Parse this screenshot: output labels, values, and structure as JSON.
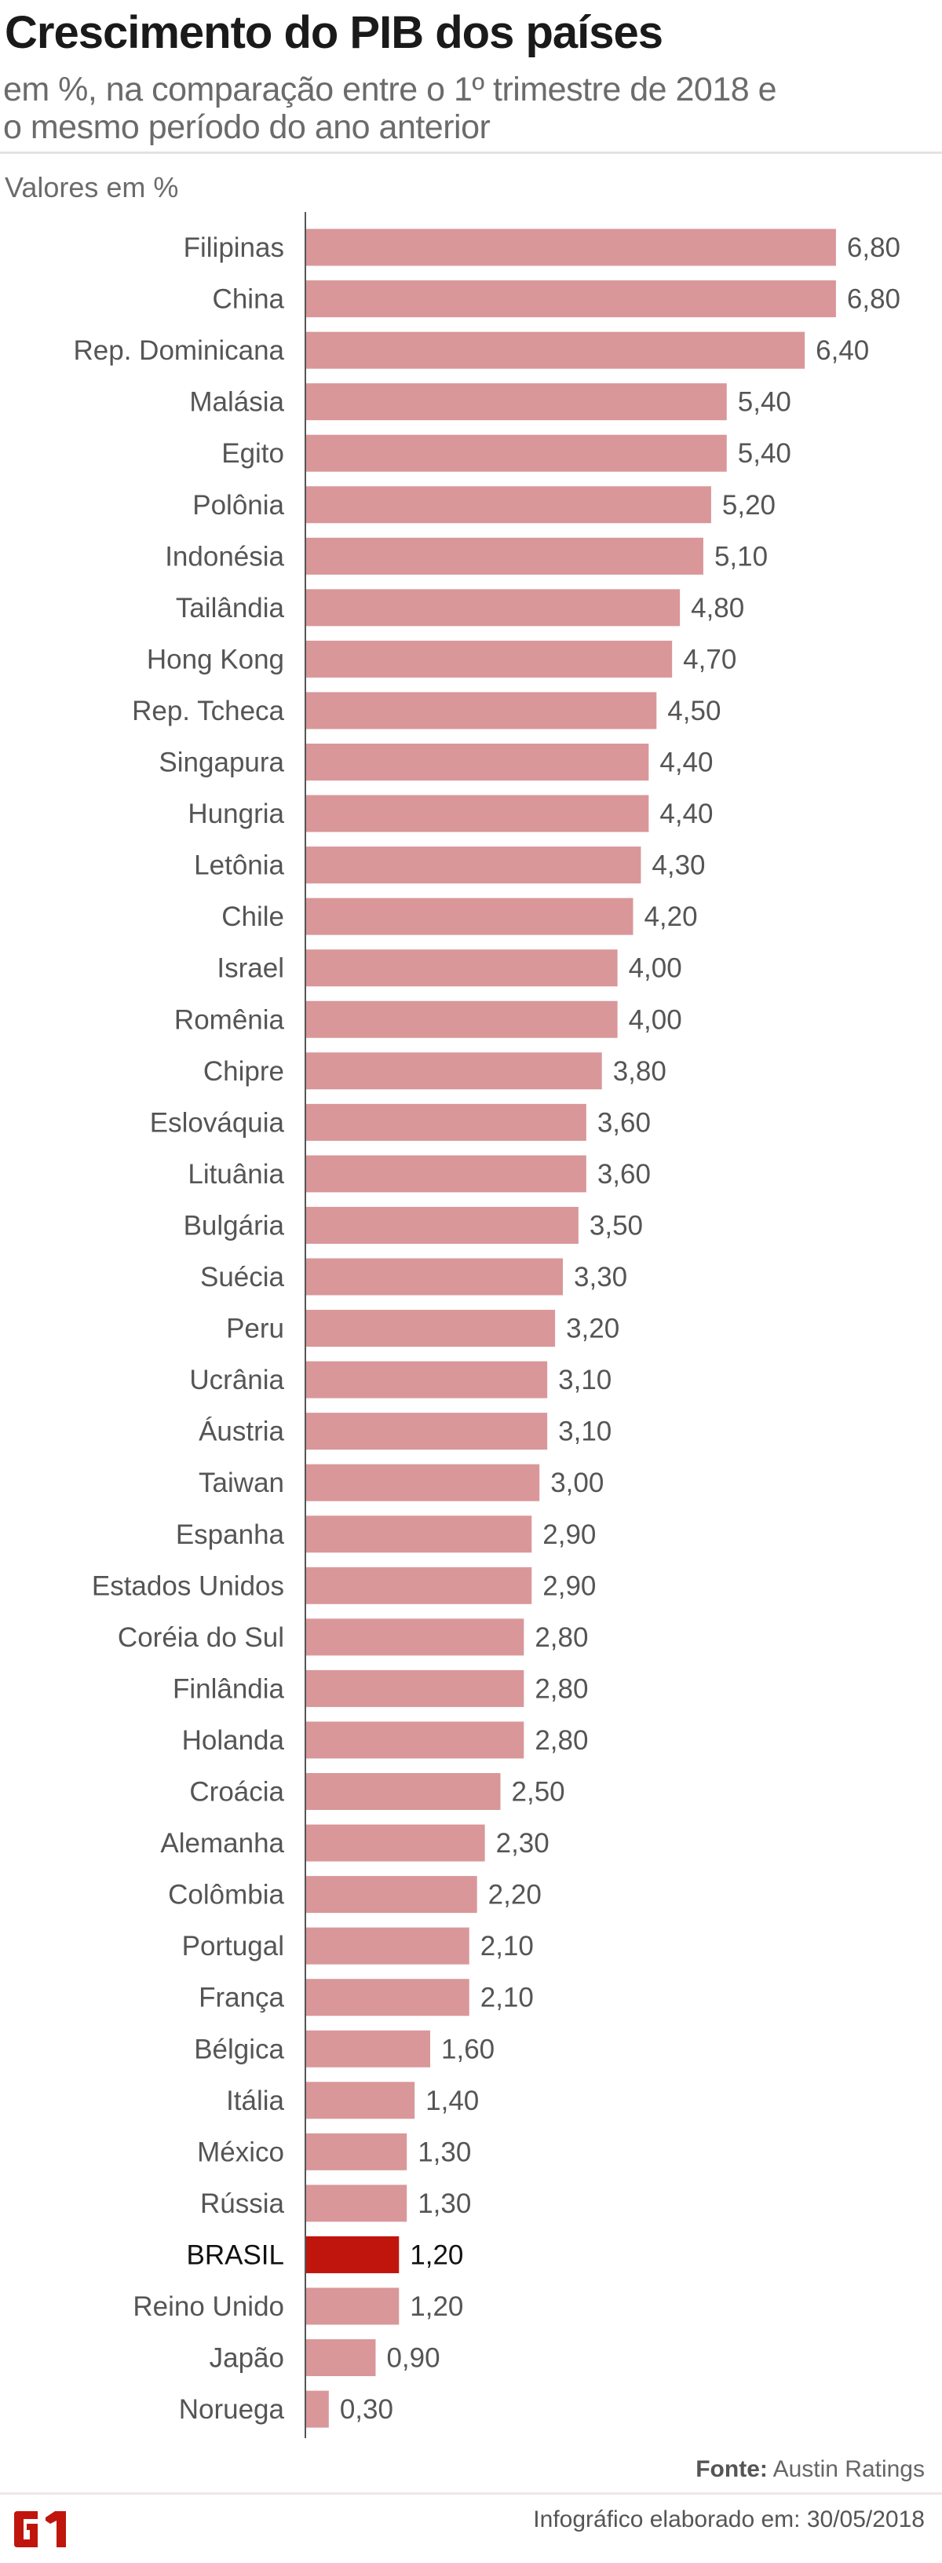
{
  "header": {
    "title": "Crescimento do PIB dos países",
    "subtitle_line1": "em %, na comparação entre o 1º trimestre de 2018 e",
    "subtitle_line2": "o mesmo período do ano anterior"
  },
  "chart_data": {
    "type": "bar",
    "orientation": "horizontal",
    "title": "Crescimento do PIB dos países",
    "unit_label": "Valores em %",
    "xlim": [
      0,
      7
    ],
    "grid": false,
    "colors": {
      "default": "#d9979a",
      "highlight": "#c0150c"
    },
    "highlight": "BRASIL",
    "categories": [
      "Filipinas",
      "China",
      "Rep. Dominicana",
      "Malásia",
      "Egito",
      "Polônia",
      "Indonésia",
      "Tailândia",
      "Hong Kong",
      "Rep. Tcheca",
      "Singapura",
      "Hungria",
      "Letônia",
      "Chile",
      "Israel",
      "Romênia",
      "Chipre",
      "Eslováquia",
      "Lituânia",
      "Bulgária",
      "Suécia",
      "Peru",
      "Ucrânia",
      "Áustria",
      "Taiwan",
      "Espanha",
      "Estados Unidos",
      "Coréia do Sul",
      "Finlândia",
      "Holanda",
      "Croácia",
      "Alemanha",
      "Colômbia",
      "Portugal",
      "França",
      "Bélgica",
      "Itália",
      "México",
      "Rússia",
      "BRASIL",
      "Reino Unido",
      "Japão",
      "Noruega"
    ],
    "values": [
      6.8,
      6.8,
      6.4,
      5.4,
      5.4,
      5.2,
      5.1,
      4.8,
      4.7,
      4.5,
      4.4,
      4.4,
      4.3,
      4.2,
      4.0,
      4.0,
      3.8,
      3.6,
      3.6,
      3.5,
      3.3,
      3.2,
      3.1,
      3.1,
      3.0,
      2.9,
      2.9,
      2.8,
      2.8,
      2.8,
      2.5,
      2.3,
      2.2,
      2.1,
      2.1,
      1.6,
      1.4,
      1.3,
      1.3,
      1.2,
      1.2,
      0.9,
      0.3
    ],
    "value_labels": [
      "6,80",
      "6,80",
      "6,40",
      "5,40",
      "5,40",
      "5,20",
      "5,10",
      "4,80",
      "4,70",
      "4,50",
      "4,40",
      "4,40",
      "4,30",
      "4,20",
      "4,00",
      "4,00",
      "3,80",
      "3,60",
      "3,60",
      "3,50",
      "3,30",
      "3,20",
      "3,10",
      "3,10",
      "3,00",
      "2,90",
      "2,90",
      "2,80",
      "2,80",
      "2,80",
      "2,50",
      "2,30",
      "2,20",
      "2,10",
      "2,10",
      "1,60",
      "1,40",
      "1,30",
      "1,30",
      "1,20",
      "1,20",
      "0,90",
      "0,30"
    ]
  },
  "footer": {
    "source_label": "Fonte:",
    "source_value": "Austin Ratings",
    "date_text": "Infográfico elaborado em: 30/05/2018",
    "logo_text": "G1"
  }
}
